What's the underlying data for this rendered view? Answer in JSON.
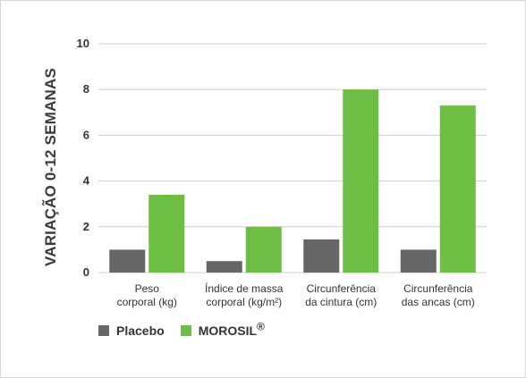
{
  "colors": {
    "placebo": "#666666",
    "morosil": "#6cbe45",
    "grid": "#cfcfcf"
  },
  "chart_data": {
    "type": "bar",
    "ylabel": "VARIAÇÃO 0-12 SEMANAS",
    "ylim": [
      0,
      10
    ],
    "yticks": [
      "0",
      "2",
      "4",
      "6",
      "8",
      "10"
    ],
    "grid": true,
    "legend_position": "bottom-left",
    "categories": [
      [
        "Peso",
        "corporal (kg)"
      ],
      [
        "Índice de massa",
        "corporal (kg/m²)"
      ],
      [
        "Circunferência",
        "da cintura (cm)"
      ],
      [
        "Circunferência",
        "das ancas (cm)"
      ]
    ],
    "series": [
      {
        "name": "Placebo",
        "values": [
          1.0,
          0.5,
          1.45,
          1.0
        ]
      },
      {
        "name": "MOROSIL",
        "values": [
          3.4,
          2.0,
          8.0,
          7.3
        ]
      }
    ]
  },
  "legend": {
    "placebo_label": "Placebo",
    "morosil_label": "MOROSIL",
    "morosil_mark": "®"
  }
}
